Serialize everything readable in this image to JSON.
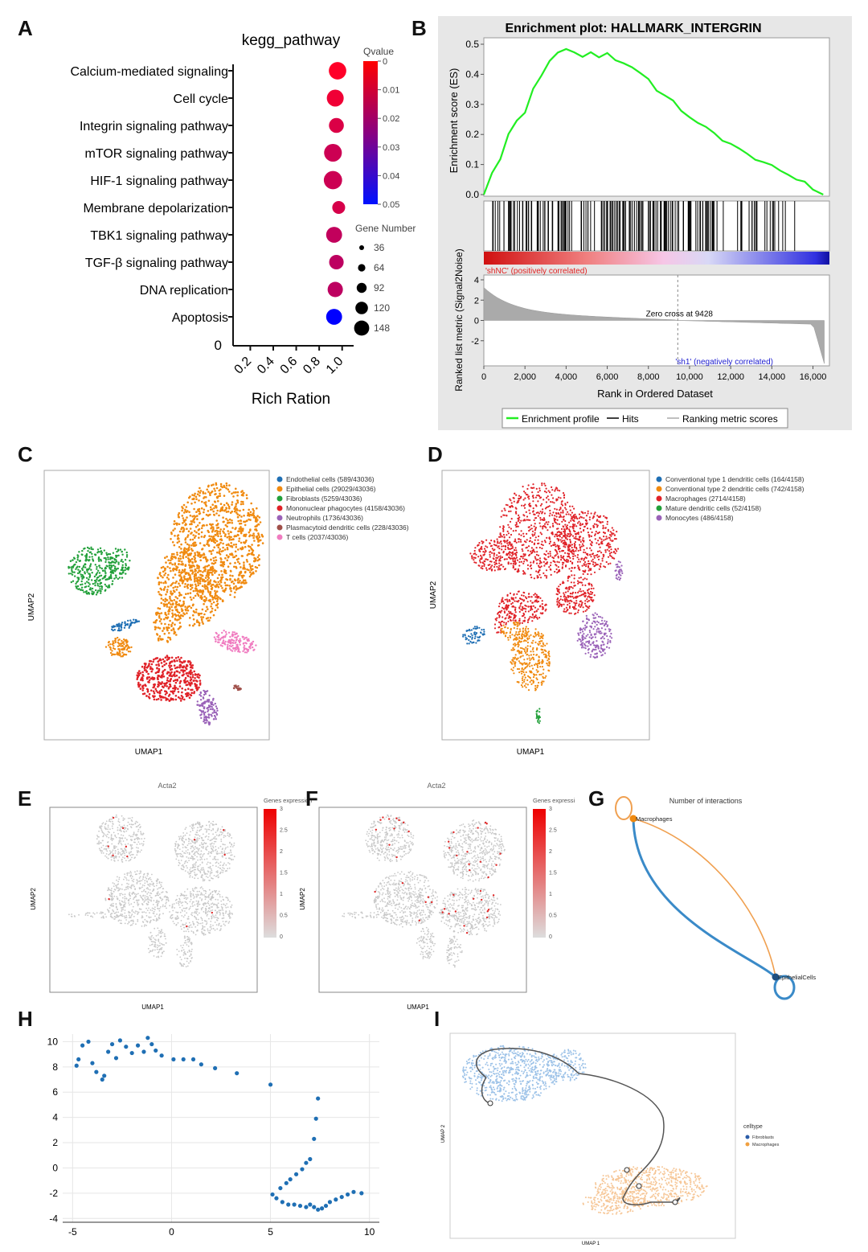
{
  "panels": {
    "a": {
      "letter": "A",
      "title": "kegg_pathway",
      "xlabel": "Rich Ration",
      "x_ticks": [
        "0.2",
        "0.4",
        "0.6",
        "0.8",
        "1.0"
      ],
      "y_zero": "0",
      "qvalue_title": "Qvalue",
      "qvalue_ticks": [
        "0",
        "0.01",
        "0.02",
        "0.03",
        "0.04",
        "0.05"
      ],
      "gene_number_title": "Gene Number",
      "gene_number_values": [
        "36",
        "64",
        "92",
        "120",
        "148"
      ]
    },
    "b": {
      "letter": "B",
      "title": "Enrichment plot: HALLMARK_INTERGRIN",
      "ylabel_top": "Enrichment score (ES)",
      "ylabel_bottom": "Ranked list metric (Signal2Noise)",
      "xlabel": "Rank in Ordered Dataset",
      "es_ticks": [
        "0.5",
        "0.4",
        "0.3",
        "0.2",
        "0.1",
        "0.0"
      ],
      "metric_ticks": [
        "4",
        "2",
        "0",
        "-2"
      ],
      "x_ticks": [
        "0",
        "2,000",
        "4,000",
        "6,000",
        "8,000",
        "10,000",
        "12,000",
        "14,000",
        "16,000"
      ],
      "pos_label": "'shNC' (positively correlated)",
      "neg_label": "'sh1' (negatively correlated)",
      "zero_cross": "Zero cross at 9428",
      "legend": [
        "Enrichment profile",
        "Hits",
        "Ranking metric scores"
      ]
    },
    "c": {
      "letter": "C",
      "xlabel": "UMAP1",
      "ylabel": "UMAP2",
      "legend": [
        {
          "label": "Endothelial cells (589/43036)",
          "color": "#1f6fb4"
        },
        {
          "label": "Epithelial cells (29029/43036)",
          "color": "#f08a10"
        },
        {
          "label": "Fibroblasts (5259/43036)",
          "color": "#22a03a"
        },
        {
          "label": "Mononuclear phagocytes (4158/43036)",
          "color": "#e02228"
        },
        {
          "label": "Neutrophils (1736/43036)",
          "color": "#9a62b8"
        },
        {
          "label": "Plasmacytoid dendritic cells (228/43036)",
          "color": "#a0504a"
        },
        {
          "label": "T cells (2037/43036)",
          "color": "#f07cc0"
        }
      ]
    },
    "d": {
      "letter": "D",
      "xlabel": "UMAP1",
      "ylabel": "UMAP2",
      "legend": [
        {
          "label": "Conventional type 1 dendritic cells (164/4158)",
          "color": "#1f6fb4"
        },
        {
          "label": "Conventional type 2 dendritic cells (742/4158)",
          "color": "#f08a10"
        },
        {
          "label": "Macrophages (2714/4158)",
          "color": "#e02228"
        },
        {
          "label": "Mature dendritic cells (52/4158)",
          "color": "#22a03a"
        },
        {
          "label": "Monocytes (486/4158)",
          "color": "#9a62b8"
        }
      ]
    },
    "e": {
      "letter": "E",
      "title": "Acta2",
      "xlabel": "UMAP1",
      "ylabel": "UMAP2",
      "colorbar_title": "Genes expression",
      "colorbar_ticks": [
        "3",
        "2.5",
        "2",
        "1.5",
        "1",
        "0.5",
        "0"
      ]
    },
    "f": {
      "letter": "F",
      "title": "Acta2",
      "xlabel": "UMAP1",
      "ylabel": "UMAP2",
      "colorbar_title": "Genes expression",
      "colorbar_ticks": [
        "3",
        "2.5",
        "2",
        "1.5",
        "1",
        "0.5",
        "0"
      ]
    },
    "g": {
      "letter": "G",
      "title": "Number of interactions",
      "node_top": "Macrophages",
      "node_bottom": "EpithelialCells"
    },
    "h": {
      "letter": "H",
      "x_ticks": [
        "-5",
        "0",
        "5",
        "10"
      ],
      "y_ticks": [
        "10",
        "8",
        "6",
        "4",
        "2",
        "0",
        "-2",
        "-4"
      ]
    },
    "i": {
      "letter": "I",
      "xlabel": "UMAP 1",
      "ylabel": "UMAP 2",
      "legend_title": "celltype",
      "legend": [
        {
          "label": "Fibroblasts",
          "color": "#2a5ca8"
        },
        {
          "label": "Macrophages",
          "color": "#f0a040"
        }
      ]
    }
  },
  "chart_data": [
    {
      "type": "scatter",
      "panel": "A",
      "title": "kegg_pathway",
      "xlabel": "Rich Ration",
      "categories": [
        "Calcium-mediated signaling",
        "Cell cycle",
        "Integrin signaling pathway",
        "mTOR signaling pathway",
        "HIF-1 signaling pathway",
        "Membrane depolarization",
        "TBK1 signaling pathway",
        "TGF-β signaling pathway",
        "DNA replication",
        "Apoptosis"
      ],
      "rich_ratio": [
        0.96,
        0.94,
        0.95,
        0.92,
        0.92,
        0.97,
        0.93,
        0.95,
        0.94,
        0.93
      ],
      "gene_number": [
        110,
        100,
        70,
        115,
        125,
        45,
        85,
        65,
        75,
        85
      ],
      "qvalue": [
        0.0,
        0.003,
        0.007,
        0.01,
        0.01,
        0.008,
        0.012,
        0.013,
        0.013,
        0.05
      ],
      "xlim": [
        0.05,
        1.1
      ],
      "qvalue_range": [
        0,
        0.05
      ],
      "gene_number_legend": [
        36,
        64,
        92,
        120,
        148
      ]
    },
    {
      "type": "line",
      "panel": "B",
      "title": "Enrichment plot: HALLMARK_INTERGRIN",
      "series": [
        {
          "name": "Enrichment profile",
          "x": [
            0,
            400,
            800,
            1200,
            1600,
            2000,
            2400,
            2800,
            3200,
            3600,
            4000,
            4400,
            4800,
            5200,
            5600,
            6000,
            6400,
            6800,
            7200,
            7600,
            8000,
            8400,
            8800,
            9200,
            9600,
            10000,
            10400,
            10800,
            11200,
            11600,
            12000,
            12400,
            12800,
            13200,
            13600,
            14000,
            14400,
            14800,
            15200,
            15600,
            16000,
            16500
          ],
          "y": [
            0.0,
            0.07,
            0.12,
            0.2,
            0.24,
            0.27,
            0.35,
            0.4,
            0.44,
            0.47,
            0.48,
            0.47,
            0.46,
            0.47,
            0.46,
            0.47,
            0.45,
            0.44,
            0.42,
            0.4,
            0.38,
            0.35,
            0.33,
            0.31,
            0.28,
            0.26,
            0.24,
            0.22,
            0.2,
            0.18,
            0.17,
            0.15,
            0.14,
            0.12,
            0.11,
            0.1,
            0.08,
            0.06,
            0.05,
            0.04,
            0.02,
            0.0
          ]
        }
      ],
      "xlim": [
        0,
        16800
      ],
      "ylim": [
        0,
        0.5
      ],
      "metric_ylim": [
        -4,
        4
      ],
      "zero_cross": 9428
    },
    {
      "type": "scatter",
      "panel": "H",
      "x": [
        -4.8,
        -4.7,
        -4.5,
        -4.2,
        -4.0,
        -3.8,
        -3.5,
        -3.4,
        -3.2,
        -3.0,
        -2.8,
        -2.6,
        -2.3,
        -2.0,
        -1.7,
        -1.4,
        -1.2,
        -1.0,
        -0.8,
        -0.5,
        0.1,
        0.6,
        1.1,
        1.5,
        2.2,
        3.3,
        5.0,
        5.1,
        5.3,
        5.6,
        5.9,
        6.2,
        6.5,
        6.8,
        7.0,
        7.2,
        7.4,
        7.6,
        7.8,
        8.0,
        8.3,
        8.6,
        8.9,
        9.2,
        9.6,
        5.5,
        5.8,
        6.0,
        6.3,
        6.6,
        6.8,
        7.0,
        7.2,
        7.3,
        7.4
      ],
      "y": [
        8.1,
        8.6,
        9.7,
        10.0,
        8.3,
        7.6,
        7.0,
        7.3,
        9.2,
        9.8,
        8.7,
        10.1,
        9.6,
        9.1,
        9.7,
        9.2,
        10.3,
        9.8,
        9.3,
        8.9,
        8.6,
        8.6,
        8.6,
        8.2,
        7.9,
        7.5,
        6.6,
        -2.1,
        -2.4,
        -2.7,
        -2.9,
        -2.9,
        -3.0,
        -3.1,
        -2.9,
        -3.1,
        -3.3,
        -3.2,
        -3.0,
        -2.7,
        -2.5,
        -2.3,
        -2.1,
        -1.9,
        -2.0,
        -1.6,
        -1.2,
        -0.9,
        -0.5,
        -0.1,
        0.4,
        0.7,
        2.3,
        3.9,
        5.5
      ],
      "xlim": [
        -5.5,
        10.5
      ],
      "ylim": [
        -4.3,
        10.6
      ]
    }
  ]
}
